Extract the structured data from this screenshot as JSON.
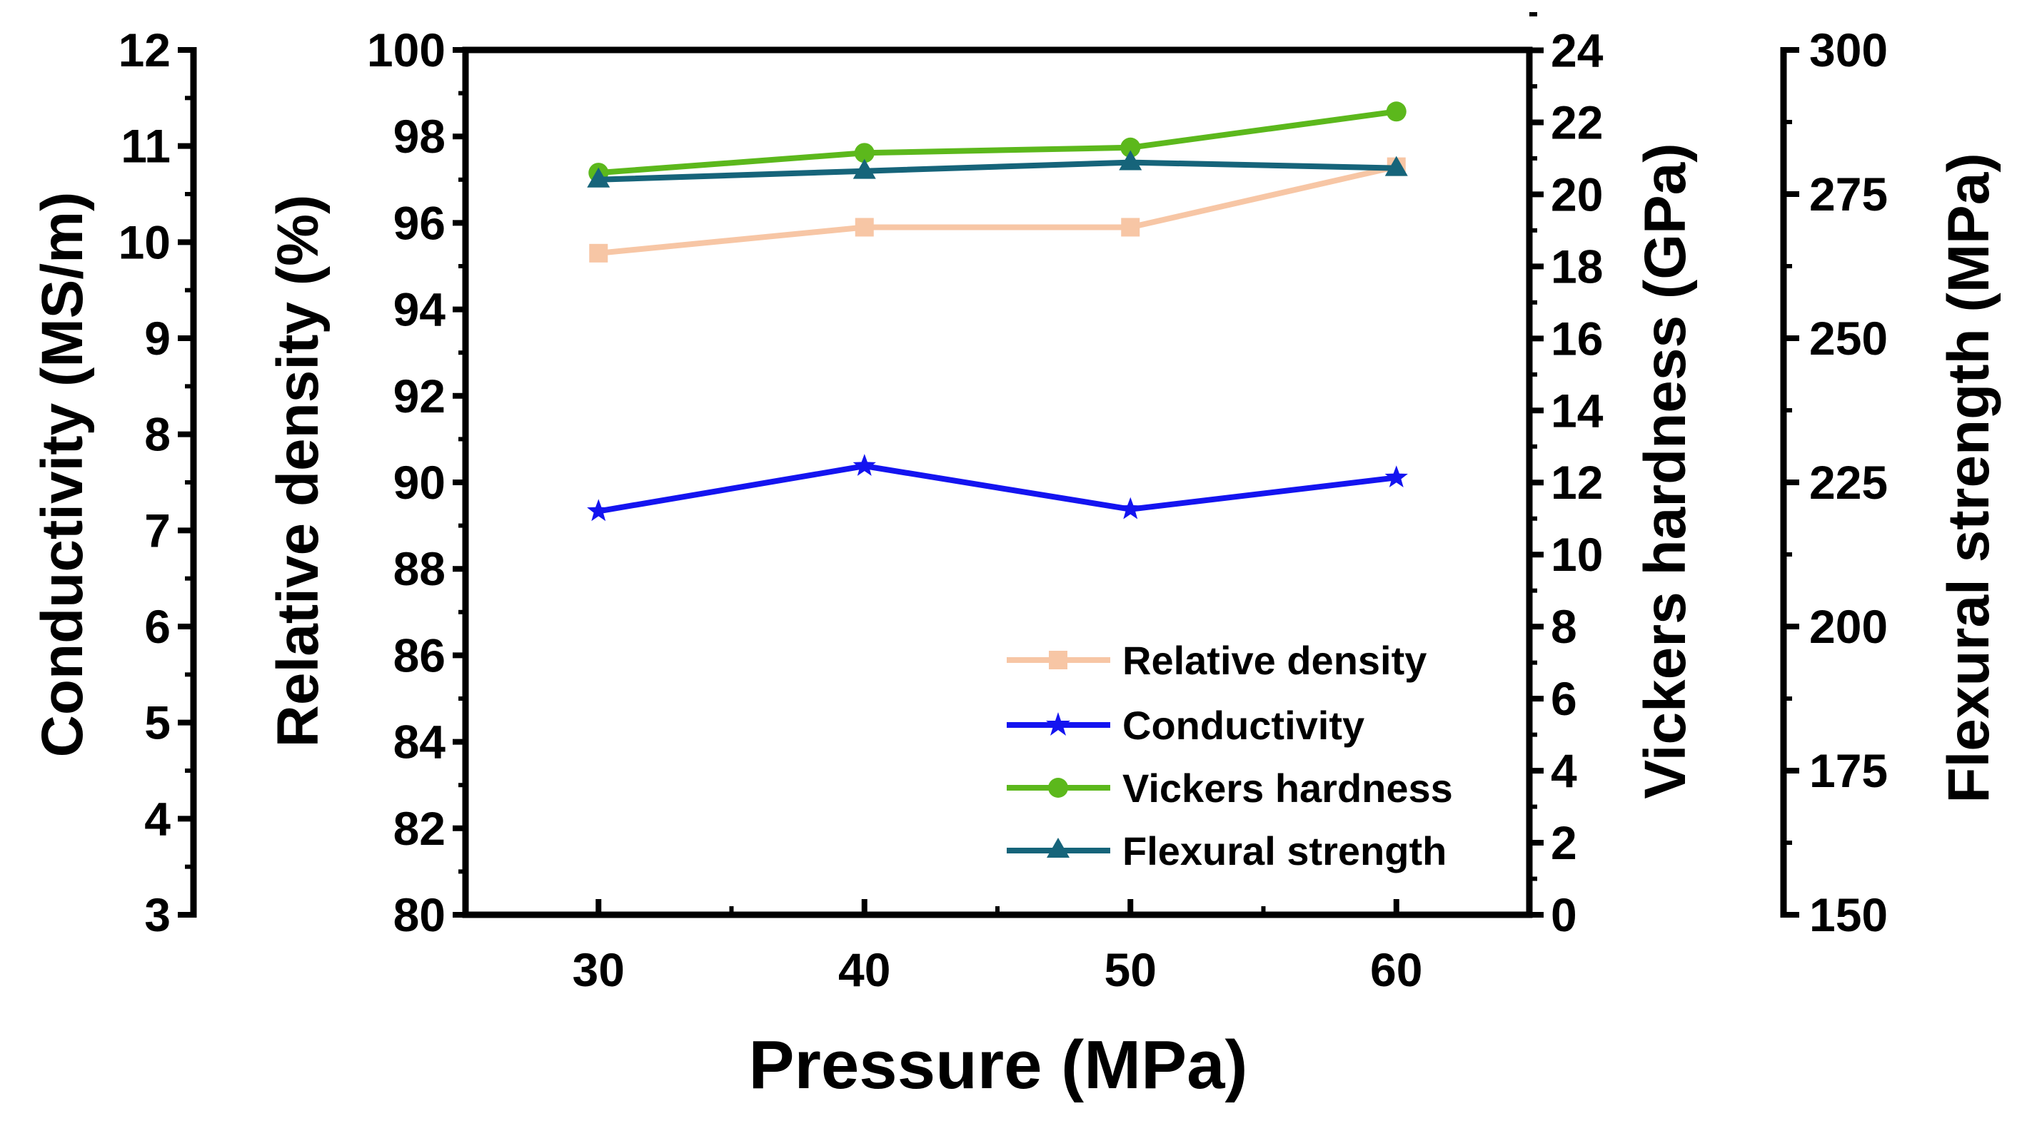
{
  "chart_data": {
    "type": "line",
    "title": "",
    "x": [
      30,
      40,
      50,
      60
    ],
    "xlabel": "Pressure (MPa)",
    "xlim": [
      25,
      65
    ],
    "xticks": [
      "30",
      "40",
      "50",
      "60"
    ],
    "axes": {
      "conductivity": {
        "label": "Conductivity (MS/m)",
        "range": [
          3,
          12
        ],
        "ticks": [
          "3",
          "4",
          "5",
          "6",
          "7",
          "8",
          "9",
          "10",
          "11",
          "12"
        ]
      },
      "relative_density": {
        "label": "Relative density (%)",
        "range": [
          80,
          100
        ],
        "ticks": [
          "80",
          "82",
          "84",
          "86",
          "88",
          "90",
          "92",
          "94",
          "96",
          "98",
          "100"
        ]
      },
      "vickers_hardness": {
        "label": "Vickers hardness (GPa)",
        "range": [
          0,
          25
        ],
        "ticks": [
          "0",
          "2",
          "4",
          "6",
          "8",
          "10",
          "12",
          "14",
          "16",
          "18",
          "20",
          "22",
          "24"
        ]
      },
      "flexural_strength": {
        "label": "Flexural strength (MPa)",
        "range": [
          150,
          300
        ],
        "ticks": [
          "150",
          "175",
          "200",
          "225",
          "250",
          "275",
          "300"
        ]
      }
    },
    "series": [
      {
        "name": "Relative density",
        "axis": "relative_density",
        "values": [
          95.3,
          95.9,
          95.9,
          97.3
        ],
        "color": "#f7c6a5",
        "marker": "square"
      },
      {
        "name": "Conductivity",
        "axis": "conductivity",
        "values": [
          7.2,
          7.67,
          7.22,
          7.55
        ],
        "color": "#1414f0",
        "marker": "star"
      },
      {
        "name": "Vickers hardness",
        "axis": "vickers_hardness",
        "values": [
          20.6,
          21.15,
          21.3,
          22.3
        ],
        "color": "#5cb81c",
        "marker": "circle"
      },
      {
        "name": "Flexural strength",
        "axis": "flexural_strength",
        "values": [
          277.5,
          279.0,
          280.5,
          279.5
        ],
        "color": "#16647a",
        "marker": "triangle"
      }
    ],
    "legend_position": "bottom-right"
  }
}
